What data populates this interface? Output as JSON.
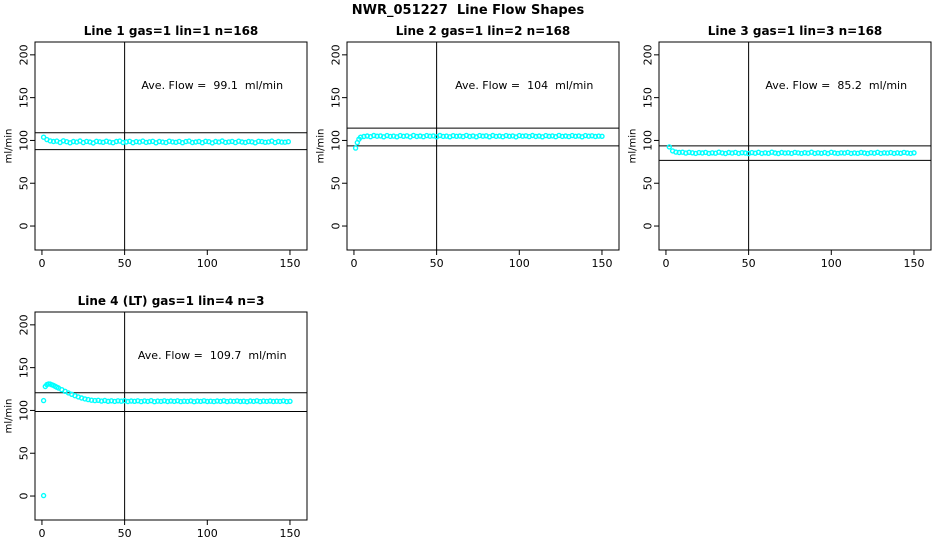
{
  "figure": {
    "title": "NWR_051227  Line Flow Shapes",
    "background": "#ffffff",
    "point_color": "#00ffff",
    "axis_color": "#000000"
  },
  "chart_data": [
    {
      "type": "scatter",
      "title": "Line 1 gas=1 lin=1 n=168",
      "annotation": "Ave. Flow =  99.1  ml/min",
      "ave_flow": 99.1,
      "ylabel": "ml/min",
      "xlim": [
        -4.2,
        160.3
      ],
      "ylim": [
        -28,
        215
      ],
      "xticks": [
        0,
        50,
        100,
        150
      ],
      "yticks": [
        0,
        50,
        100,
        150,
        200
      ],
      "vline": 50,
      "hlines": [
        109.0,
        89.2
      ],
      "points": [
        [
          1,
          103.8
        ],
        [
          3,
          101.0
        ],
        [
          5,
          99.5
        ],
        [
          7,
          98.8
        ],
        [
          9,
          99.2
        ],
        [
          11,
          97.6
        ],
        [
          13,
          99.6
        ],
        [
          15,
          98.5
        ],
        [
          17,
          97.2
        ],
        [
          19,
          98.8
        ],
        [
          21,
          98.0
        ],
        [
          23,
          99.3
        ],
        [
          25,
          97.5
        ],
        [
          27,
          98.9
        ],
        [
          29,
          98.2
        ],
        [
          31,
          97.0
        ],
        [
          33,
          99.0
        ],
        [
          35,
          98.4
        ],
        [
          37,
          97.8
        ],
        [
          39,
          99.1
        ],
        [
          41,
          98.0
        ],
        [
          43,
          97.3
        ],
        [
          45,
          98.7
        ],
        [
          47,
          99.2
        ],
        [
          49,
          97.6
        ],
        [
          51,
          98.3
        ],
        [
          53,
          99.0
        ],
        [
          55,
          97.4
        ],
        [
          57,
          98.6
        ],
        [
          59,
          98.0
        ],
        [
          61,
          99.2
        ],
        [
          63,
          97.7
        ],
        [
          65,
          98.4
        ],
        [
          67,
          99.0
        ],
        [
          69,
          97.2
        ],
        [
          71,
          98.8
        ],
        [
          73,
          98.1
        ],
        [
          75,
          97.5
        ],
        [
          77,
          99.1
        ],
        [
          79,
          98.3
        ],
        [
          81,
          97.8
        ],
        [
          83,
          98.9
        ],
        [
          85,
          97.3
        ],
        [
          87,
          98.6
        ],
        [
          89,
          99.2
        ],
        [
          91,
          97.6
        ],
        [
          93,
          98.2
        ],
        [
          95,
          98.8
        ],
        [
          97,
          97.4
        ],
        [
          99,
          99.0
        ],
        [
          101,
          98.5
        ],
        [
          103,
          97.1
        ],
        [
          105,
          98.7
        ],
        [
          107,
          98.0
        ],
        [
          109,
          99.3
        ],
        [
          111,
          97.7
        ],
        [
          113,
          98.3
        ],
        [
          115,
          98.9
        ],
        [
          117,
          97.5
        ],
        [
          119,
          99.1
        ],
        [
          121,
          98.2
        ],
        [
          123,
          97.6
        ],
        [
          125,
          98.8
        ],
        [
          127,
          98.4
        ],
        [
          129,
          97.2
        ],
        [
          131,
          99.0
        ],
        [
          133,
          98.6
        ],
        [
          135,
          97.8
        ],
        [
          137,
          98.3
        ],
        [
          139,
          99.2
        ],
        [
          141,
          97.5
        ],
        [
          143,
          98.7
        ],
        [
          145,
          98.1
        ],
        [
          147,
          97.9
        ],
        [
          149,
          98.5
        ]
      ]
    },
    {
      "type": "scatter",
      "title": "Line 2 gas=1 lin=2 n=168",
      "annotation": "Ave. Flow =  104  ml/min",
      "ave_flow": 104,
      "ylabel": "ml/min",
      "xlim": [
        -4.2,
        160.3
      ],
      "ylim": [
        -28,
        215
      ],
      "xticks": [
        0,
        50,
        100,
        150
      ],
      "yticks": [
        0,
        50,
        100,
        150,
        200
      ],
      "vline": 50,
      "hlines": [
        114.4,
        93.6
      ],
      "points": [
        [
          1,
          91.0
        ],
        [
          2,
          97.5
        ],
        [
          3,
          101.5
        ],
        [
          4,
          103.8
        ],
        [
          6,
          104.6
        ],
        [
          8,
          105.2
        ],
        [
          10,
          104.4
        ],
        [
          12,
          105.8
        ],
        [
          14,
          104.9
        ],
        [
          16,
          105.3
        ],
        [
          18,
          104.2
        ],
        [
          20,
          105.6
        ],
        [
          22,
          104.7
        ],
        [
          24,
          105.1
        ],
        [
          26,
          104.3
        ],
        [
          28,
          105.7
        ],
        [
          30,
          104.8
        ],
        [
          32,
          105.4
        ],
        [
          34,
          104.1
        ],
        [
          36,
          105.9
        ],
        [
          38,
          104.6
        ],
        [
          40,
          105.2
        ],
        [
          42,
          104.4
        ],
        [
          44,
          105.6
        ],
        [
          46,
          104.9
        ],
        [
          48,
          105.3
        ],
        [
          50,
          104.2
        ],
        [
          52,
          105.8
        ],
        [
          54,
          104.7
        ],
        [
          56,
          105.1
        ],
        [
          58,
          104.3
        ],
        [
          60,
          105.5
        ],
        [
          62,
          104.8
        ],
        [
          64,
          105.2
        ],
        [
          66,
          104.5
        ],
        [
          68,
          105.9
        ],
        [
          70,
          104.6
        ],
        [
          72,
          105.3
        ],
        [
          74,
          104.2
        ],
        [
          76,
          105.7
        ],
        [
          78,
          104.9
        ],
        [
          80,
          105.4
        ],
        [
          82,
          104.3
        ],
        [
          84,
          105.8
        ],
        [
          86,
          104.7
        ],
        [
          88,
          105.2
        ],
        [
          90,
          104.4
        ],
        [
          92,
          105.6
        ],
        [
          94,
          104.8
        ],
        [
          96,
          105.3
        ],
        [
          98,
          104.1
        ],
        [
          100,
          105.7
        ],
        [
          102,
          104.9
        ],
        [
          104,
          105.4
        ],
        [
          106,
          104.5
        ],
        [
          108,
          105.8
        ],
        [
          110,
          104.6
        ],
        [
          112,
          105.2
        ],
        [
          114,
          104.3
        ],
        [
          116,
          105.6
        ],
        [
          118,
          104.8
        ],
        [
          120,
          105.3
        ],
        [
          122,
          104.4
        ],
        [
          124,
          105.9
        ],
        [
          126,
          104.7
        ],
        [
          128,
          105.2
        ],
        [
          130,
          104.5
        ],
        [
          132,
          105.7
        ],
        [
          134,
          104.8
        ],
        [
          136,
          105.3
        ],
        [
          138,
          104.2
        ],
        [
          140,
          105.6
        ],
        [
          142,
          104.9
        ],
        [
          144,
          105.4
        ],
        [
          146,
          104.6
        ],
        [
          148,
          105.1
        ],
        [
          150,
          104.8
        ]
      ]
    },
    {
      "type": "scatter",
      "title": "Line 3 gas=1 lin=3 n=168",
      "annotation": "Ave. Flow =  85.2  ml/min",
      "ave_flow": 85.2,
      "ylabel": "ml/min",
      "xlim": [
        -4.2,
        160.3
      ],
      "ylim": [
        -28,
        215
      ],
      "xticks": [
        0,
        50,
        100,
        150
      ],
      "yticks": [
        0,
        50,
        100,
        150,
        200
      ],
      "vline": 50,
      "hlines": [
        93.7,
        76.7
      ],
      "points": [
        [
          2,
          92.5
        ],
        [
          4,
          87.8
        ],
        [
          6,
          86.4
        ],
        [
          8,
          85.9
        ],
        [
          10,
          86.3
        ],
        [
          12,
          85.2
        ],
        [
          14,
          86.1
        ],
        [
          16,
          85.5
        ],
        [
          18,
          84.9
        ],
        [
          20,
          85.8
        ],
        [
          22,
          85.3
        ],
        [
          24,
          86.0
        ],
        [
          26,
          84.8
        ],
        [
          28,
          85.6
        ],
        [
          30,
          85.1
        ],
        [
          32,
          86.2
        ],
        [
          34,
          85.4
        ],
        [
          36,
          84.7
        ],
        [
          38,
          85.9
        ],
        [
          40,
          85.2
        ],
        [
          42,
          86.0
        ],
        [
          44,
          84.9
        ],
        [
          46,
          85.7
        ],
        [
          48,
          85.3
        ],
        [
          50,
          84.6
        ],
        [
          52,
          85.8
        ],
        [
          54,
          85.1
        ],
        [
          56,
          86.1
        ],
        [
          58,
          84.8
        ],
        [
          60,
          85.5
        ],
        [
          62,
          85.0
        ],
        [
          64,
          86.2
        ],
        [
          66,
          85.3
        ],
        [
          68,
          84.7
        ],
        [
          70,
          85.9
        ],
        [
          72,
          85.2
        ],
        [
          74,
          85.6
        ],
        [
          76,
          84.9
        ],
        [
          78,
          86.0
        ],
        [
          80,
          85.4
        ],
        [
          82,
          84.8
        ],
        [
          84,
          85.7
        ],
        [
          86,
          85.1
        ],
        [
          88,
          86.2
        ],
        [
          90,
          84.9
        ],
        [
          92,
          85.5
        ],
        [
          94,
          85.0
        ],
        [
          96,
          85.8
        ],
        [
          98,
          84.7
        ],
        [
          100,
          86.1
        ],
        [
          102,
          85.3
        ],
        [
          104,
          84.9
        ],
        [
          106,
          85.6
        ],
        [
          108,
          85.2
        ],
        [
          110,
          86.0
        ],
        [
          112,
          84.8
        ],
        [
          114,
          85.4
        ],
        [
          116,
          85.0
        ],
        [
          118,
          85.9
        ],
        [
          120,
          85.3
        ],
        [
          122,
          84.7
        ],
        [
          124,
          85.7
        ],
        [
          126,
          85.1
        ],
        [
          128,
          86.1
        ],
        [
          130,
          84.9
        ],
        [
          132,
          85.5
        ],
        [
          134,
          85.2
        ],
        [
          136,
          85.8
        ],
        [
          138,
          84.8
        ],
        [
          140,
          85.6
        ],
        [
          142,
          85.0
        ],
        [
          144,
          86.0
        ],
        [
          146,
          85.3
        ],
        [
          148,
          84.9
        ],
        [
          150,
          85.5
        ]
      ]
    },
    {
      "type": "scatter",
      "title": "Line 4 (LT) gas=1 lin=4 n=3",
      "annotation": "Ave. Flow =  109.7  ml/min",
      "ave_flow": 109.7,
      "ylabel": "ml/min",
      "xlim": [
        -4.2,
        160.3
      ],
      "ylim": [
        -28,
        215
      ],
      "xticks": [
        0,
        50,
        100,
        150
      ],
      "yticks": [
        0,
        50,
        100,
        150,
        200
      ],
      "vline": 50,
      "hlines": [
        120.7,
        98.7
      ],
      "points": [
        [
          1,
          0.5
        ],
        [
          1,
          111.5
        ],
        [
          2,
          128.0
        ],
        [
          3,
          130.2
        ],
        [
          4,
          131.0
        ],
        [
          5,
          130.8
        ],
        [
          6,
          130.0
        ],
        [
          7,
          129.2
        ],
        [
          8,
          128.2
        ],
        [
          9,
          127.2
        ],
        [
          10,
          126.2
        ],
        [
          12,
          124.2
        ],
        [
          14,
          122.3
        ],
        [
          16,
          120.5
        ],
        [
          18,
          118.8
        ],
        [
          20,
          117.2
        ],
        [
          22,
          115.8
        ],
        [
          24,
          114.5
        ],
        [
          26,
          113.5
        ],
        [
          28,
          112.7
        ],
        [
          30,
          112.0
        ],
        [
          32,
          111.5
        ],
        [
          34,
          111.8
        ],
        [
          36,
          110.9
        ],
        [
          38,
          111.6
        ],
        [
          40,
          110.7
        ],
        [
          42,
          111.3
        ],
        [
          44,
          110.5
        ],
        [
          46,
          111.2
        ],
        [
          48,
          110.8
        ],
        [
          50,
          111.4
        ],
        [
          52,
          110.4
        ],
        [
          54,
          111.0
        ],
        [
          56,
          110.7
        ],
        [
          58,
          111.3
        ],
        [
          60,
          110.3
        ],
        [
          62,
          111.1
        ],
        [
          64,
          110.6
        ],
        [
          66,
          111.4
        ],
        [
          68,
          110.2
        ],
        [
          70,
          110.9
        ],
        [
          72,
          110.5
        ],
        [
          74,
          111.2
        ],
        [
          76,
          110.4
        ],
        [
          78,
          111.0
        ],
        [
          80,
          110.6
        ],
        [
          82,
          111.3
        ],
        [
          84,
          110.3
        ],
        [
          86,
          110.8
        ],
        [
          88,
          110.5
        ],
        [
          90,
          111.1
        ],
        [
          92,
          110.2
        ],
        [
          94,
          110.9
        ],
        [
          96,
          110.6
        ],
        [
          98,
          111.2
        ],
        [
          100,
          110.4
        ],
        [
          102,
          110.8
        ],
        [
          104,
          110.3
        ],
        [
          106,
          111.0
        ],
        [
          108,
          110.6
        ],
        [
          110,
          111.2
        ],
        [
          112,
          110.3
        ],
        [
          114,
          110.9
        ],
        [
          116,
          110.5
        ],
        [
          118,
          111.1
        ],
        [
          120,
          110.4
        ],
        [
          122,
          110.8
        ],
        [
          124,
          110.2
        ],
        [
          126,
          111.0
        ],
        [
          128,
          110.6
        ],
        [
          130,
          111.2
        ],
        [
          132,
          110.3
        ],
        [
          134,
          110.9
        ],
        [
          136,
          110.5
        ],
        [
          138,
          111.0
        ],
        [
          140,
          110.4
        ],
        [
          142,
          110.8
        ],
        [
          144,
          110.6
        ],
        [
          146,
          111.1
        ],
        [
          148,
          110.3
        ],
        [
          150,
          110.7
        ]
      ]
    }
  ]
}
